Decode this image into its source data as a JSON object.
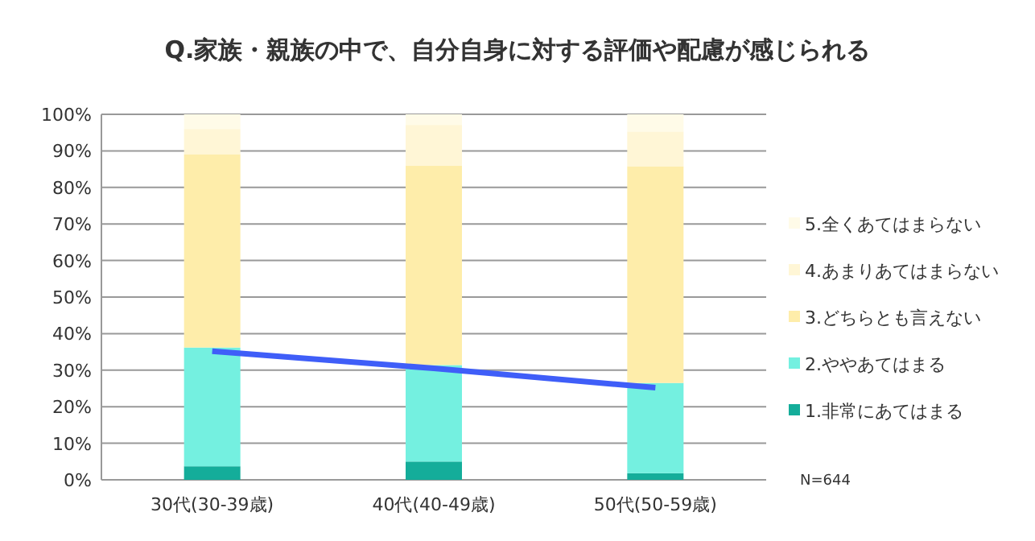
{
  "chart_data": {
    "type": "bar",
    "stacked": true,
    "title": "Q.家族・親族の中で、自分自身に対する評価や配慮が感じられる",
    "categories": [
      "30代(30-39歳)",
      "40代(40-49歳)",
      "50代(50-59歳)"
    ],
    "series": [
      {
        "name": "1.非常にあてはまる",
        "color": "#14ad9a",
        "values": [
          3.7,
          5.0,
          1.8
        ]
      },
      {
        "name": "2.ややあてはまる",
        "color": "#74f0e0",
        "values": [
          32.5,
          26.4,
          24.7
        ]
      },
      {
        "name": "3.どちらとも言えない",
        "color": "#feedaa",
        "values": [
          52.9,
          54.5,
          59.3
        ]
      },
      {
        "name": "4.あまりあてはまらない",
        "color": "#fff6d6",
        "values": [
          6.9,
          11.2,
          9.5
        ]
      },
      {
        "name": "5.全くあてはまらない",
        "color": "#fffbe8",
        "values": [
          4.0,
          2.9,
          4.7
        ]
      },
      {
        "type": "line",
        "color": "#3f5ef8",
        "values": [
          35.2,
          30.5,
          25.2
        ]
      }
    ],
    "ylim": [
      0,
      100
    ],
    "yticks": [
      {
        "value": 0,
        "label": "0%"
      },
      {
        "value": 10,
        "label": "10%"
      },
      {
        "value": 20,
        "label": "20%"
      },
      {
        "value": 30,
        "label": "30%"
      },
      {
        "value": 40,
        "label": "40%"
      },
      {
        "value": 50,
        "label": "50%"
      },
      {
        "value": 60,
        "label": "60%"
      },
      {
        "value": 70,
        "label": "70%"
      },
      {
        "value": 80,
        "label": "80%"
      },
      {
        "value": 90,
        "label": "90%"
      },
      {
        "value": 100,
        "label": "100%"
      }
    ],
    "grid": "y",
    "legend": "right",
    "annotations": [
      "N=644"
    ]
  }
}
